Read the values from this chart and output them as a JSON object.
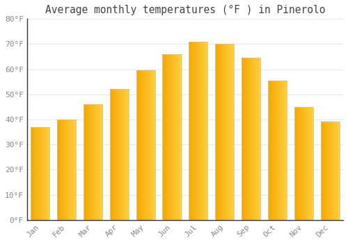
{
  "title": "Average monthly temperatures (°F ) in Pinerolo",
  "months": [
    "Jan",
    "Feb",
    "Mar",
    "Apr",
    "May",
    "Jun",
    "Jul",
    "Aug",
    "Sep",
    "Oct",
    "Nov",
    "Dec"
  ],
  "values": [
    37,
    40,
    46,
    52,
    59.5,
    66,
    71,
    70,
    64.5,
    55.5,
    45,
    39
  ],
  "bar_color_left": "#F5A800",
  "bar_color_right": "#FFD040",
  "bar_edge_color": "#CCCCCC",
  "ylim": [
    0,
    80
  ],
  "yticks": [
    0,
    10,
    20,
    30,
    40,
    50,
    60,
    70,
    80
  ],
  "ytick_labels": [
    "0°F",
    "10°F",
    "20°F",
    "30°F",
    "40°F",
    "50°F",
    "60°F",
    "70°F",
    "80°F"
  ],
  "bg_color": "#FFFFFF",
  "grid_color": "#E8E8E8",
  "title_fontsize": 10.5,
  "tick_fontsize": 8,
  "title_color": "#444444",
  "tick_color": "#888888",
  "font_family": "monospace",
  "bar_width": 0.72
}
